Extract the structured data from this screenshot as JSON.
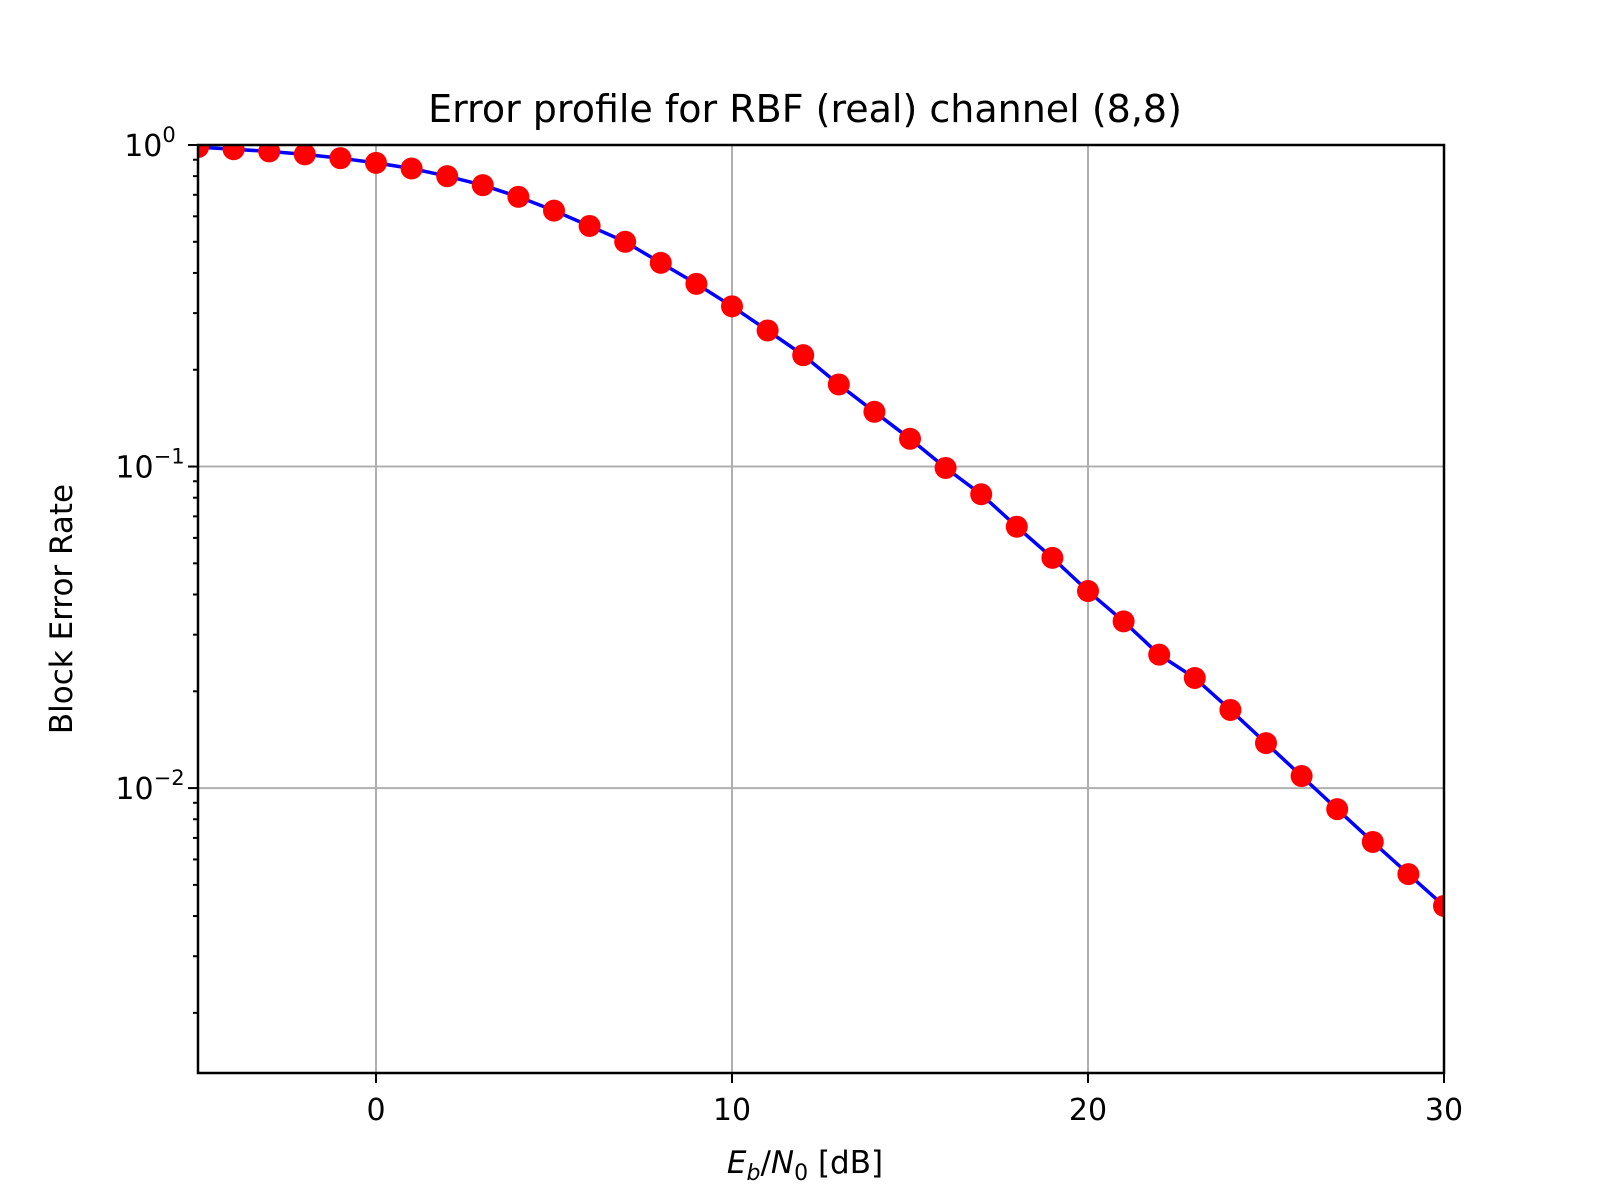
{
  "chart_data": {
    "type": "line",
    "title": "Error profile for RBF (real) channel (8,8)",
    "xlabel": {
      "var": "E",
      "sub": "b",
      "slash": "/",
      "var2": "N",
      "sub2": "0",
      "unit": " [dB]"
    },
    "ylabel": "Block Error Rate",
    "xlim": [
      -5,
      30
    ],
    "ylim": [
      0.0013,
      1.0
    ],
    "yscale": "log",
    "grid": true,
    "x_ticks": [
      {
        "value": 0,
        "label": "0"
      },
      {
        "value": 10,
        "label": "10"
      },
      {
        "value": 20,
        "label": "20"
      },
      {
        "value": 30,
        "label": "30"
      }
    ],
    "y_ticks": [
      {
        "value": 1,
        "base": "10",
        "exp": "0"
      },
      {
        "value": 0.1,
        "base": "10",
        "exp": "−1"
      },
      {
        "value": 0.01,
        "base": "10",
        "exp": "−2"
      }
    ],
    "line_color": "#0000ff",
    "marker_color": "#ff0000",
    "series": [
      {
        "x": [
          -5,
          -4,
          -3,
          -2,
          -1,
          0,
          1,
          2,
          3,
          4,
          5,
          6,
          7,
          8,
          9,
          10,
          11,
          12,
          13,
          14,
          15,
          16,
          17,
          18,
          19,
          20,
          21,
          22,
          23,
          24,
          25,
          26,
          27,
          28,
          29,
          30
        ],
        "y": [
          0.985,
          0.97,
          0.955,
          0.935,
          0.91,
          0.88,
          0.845,
          0.8,
          0.75,
          0.69,
          0.625,
          0.56,
          0.5,
          0.43,
          0.37,
          0.315,
          0.265,
          0.222,
          0.18,
          0.148,
          0.122,
          0.099,
          0.082,
          0.065,
          0.052,
          0.041,
          0.033,
          0.026,
          0.022,
          0.0175,
          0.0138,
          0.0109,
          0.0086,
          0.0068,
          0.0054,
          0.0043
        ]
      }
    ]
  }
}
